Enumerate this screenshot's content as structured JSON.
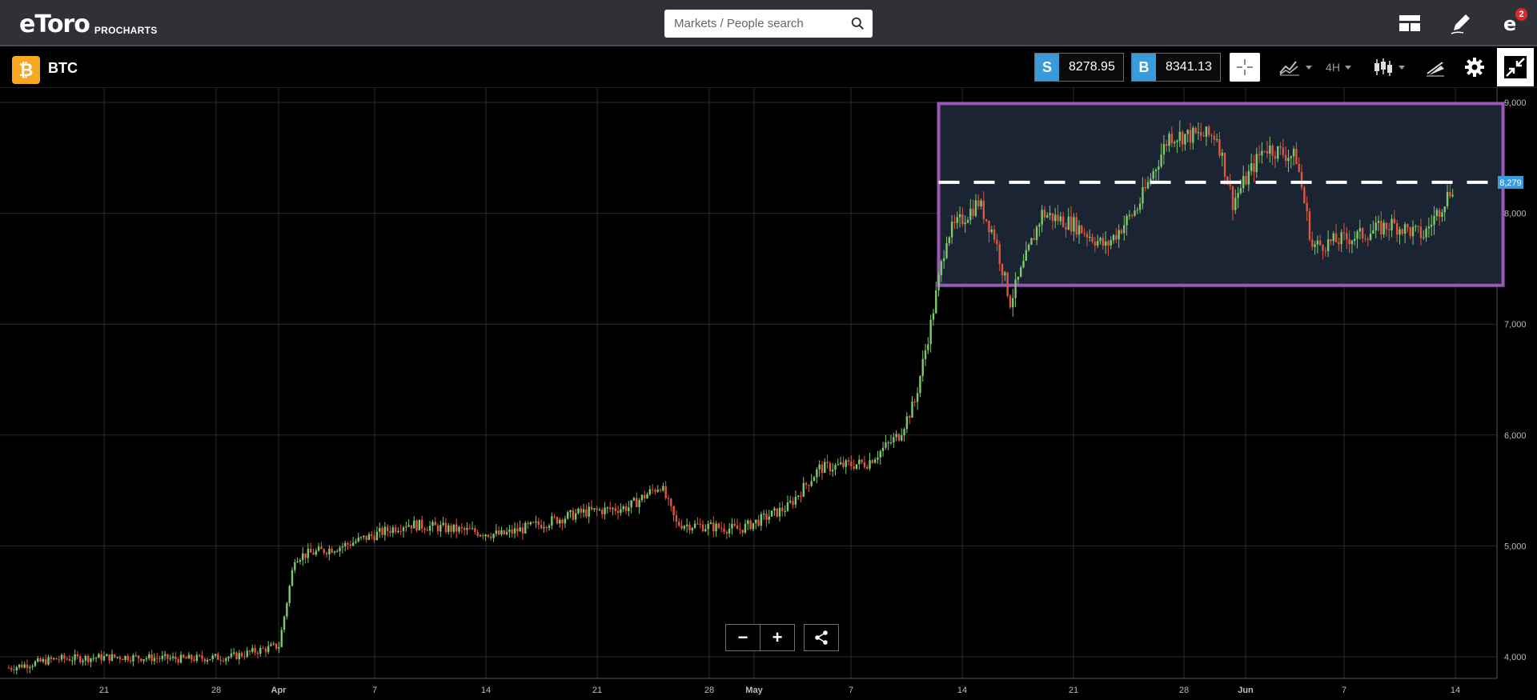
{
  "app": {
    "logo_text": "eToro",
    "logo_suffix": "PROCHARTS"
  },
  "search": {
    "placeholder": "Markets / People search",
    "value": ""
  },
  "top_icons": [
    {
      "name": "layout-icon"
    },
    {
      "name": "pencil-icon"
    },
    {
      "name": "notifications-icon",
      "badge": "2"
    }
  ],
  "instrument": {
    "symbol": "BTC",
    "icon": "bitcoin-icon",
    "icon_color": "#f7a823",
    "sell_label": "S",
    "sell_price": "8278.95",
    "buy_label": "B",
    "buy_price": "8341.13",
    "timeframe": "4H"
  },
  "toolbar_icons": [
    "crosshair-icon",
    "indicators-icon",
    "timeframe-dropdown",
    "candlestick-icon",
    "drawing-tools-icon",
    "gear-icon",
    "collapse-icon"
  ],
  "colors": {
    "up_candle": "#7ec96d",
    "down_candle": "#e0563e",
    "rectangle": "#9b59b6",
    "rectangle_fill": "#1b2432",
    "current_price_tag": "#3a9bdc",
    "accent_blue": "#3a9bdc"
  },
  "chart_data": {
    "type": "candlestick",
    "symbol": "BTC",
    "timeframe": "4H",
    "x_tick_labels": [
      "21",
      "28",
      "Apr",
      "7",
      "14",
      "21",
      "28",
      "May",
      "7",
      "14",
      "21",
      "28",
      "Jun",
      "7",
      "14"
    ],
    "y_tick_labels": [
      "9,000",
      "8,000",
      "7,000",
      "6,000",
      "5,000",
      "4,000"
    ],
    "y_ticks": [
      9000,
      8000,
      7000,
      6000,
      5000,
      4000
    ],
    "ylim": [
      3850,
      9100
    ],
    "grid": true,
    "current_price": 8279,
    "current_price_label": "8,279",
    "horizontal_line": {
      "value": 8279,
      "style": "dashed",
      "color": "#ffffff"
    },
    "rectangle": {
      "x_start": "May 13",
      "x_end": "Jun 17",
      "y_low": 7350,
      "y_high": 8990
    },
    "price_path_approx": [
      {
        "x": "Mar 15",
        "y": 3900
      },
      {
        "x": "Mar 18",
        "y": 3980
      },
      {
        "x": "Mar 22",
        "y": 4000
      },
      {
        "x": "Mar 26",
        "y": 3980
      },
      {
        "x": "Mar 29",
        "y": 4000
      },
      {
        "x": "Apr 1",
        "y": 4100
      },
      {
        "x": "Apr 2",
        "y": 4900
      },
      {
        "x": "Apr 5",
        "y": 5000
      },
      {
        "x": "Apr 9",
        "y": 5200
      },
      {
        "x": "Apr 12",
        "y": 5150
      },
      {
        "x": "Apr 15",
        "y": 5100
      },
      {
        "x": "Apr 20",
        "y": 5300
      },
      {
        "x": "Apr 23",
        "y": 5350
      },
      {
        "x": "Apr 25",
        "y": 5550
      },
      {
        "x": "Apr 26",
        "y": 5200
      },
      {
        "x": "Apr 30",
        "y": 5150
      },
      {
        "x": "May 3",
        "y": 5350
      },
      {
        "x": "May 5",
        "y": 5700
      },
      {
        "x": "May 8",
        "y": 5750
      },
      {
        "x": "May 10",
        "y": 6000
      },
      {
        "x": "May 11",
        "y": 6300
      },
      {
        "x": "May 12",
        "y": 7000
      },
      {
        "x": "May 13",
        "y": 7800
      },
      {
        "x": "May 15",
        "y": 8100
      },
      {
        "x": "May 16",
        "y": 7800
      },
      {
        "x": "May 17",
        "y": 7200
      },
      {
        "x": "May 19",
        "y": 8000
      },
      {
        "x": "May 21",
        "y": 7900
      },
      {
        "x": "May 23",
        "y": 7700
      },
      {
        "x": "May 25",
        "y": 8050
      },
      {
        "x": "May 27",
        "y": 8700
      },
      {
        "x": "May 30",
        "y": 8700
      },
      {
        "x": "May 31",
        "y": 8100
      },
      {
        "x": "Jun 2",
        "y": 8600
      },
      {
        "x": "Jun 4",
        "y": 8500
      },
      {
        "x": "Jun 5",
        "y": 7700
      },
      {
        "x": "Jun 8",
        "y": 7800
      },
      {
        "x": "Jun 10",
        "y": 7900
      },
      {
        "x": "Jun 12",
        "y": 7800
      },
      {
        "x": "Jun 14",
        "y": 8279
      }
    ]
  }
}
